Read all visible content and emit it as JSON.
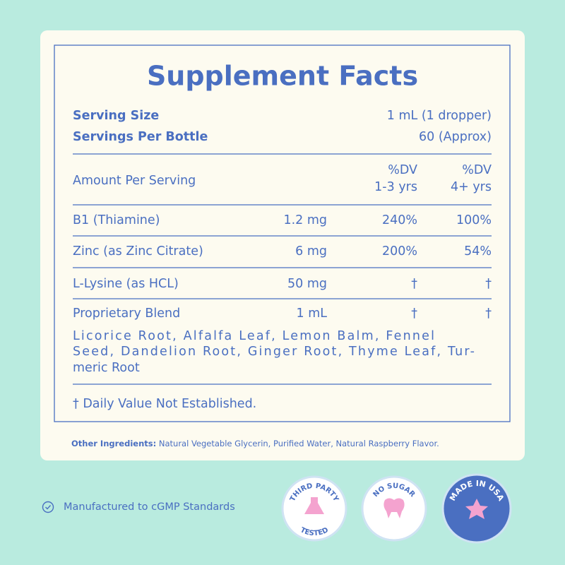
{
  "header": {
    "title": "Supplement Facts"
  },
  "serving": [
    {
      "label": "Serving Size",
      "value": "1 mL (1 dropper)"
    },
    {
      "label": "Servings Per Bottle",
      "value": "60 (Approx)"
    }
  ],
  "table": {
    "header": {
      "label": "Amount Per Serving",
      "dv1": [
        "%DV",
        "1-3 yrs"
      ],
      "dv2": [
        "%DV",
        "4+ yrs"
      ]
    },
    "rows": [
      [
        "B1 (Thiamine)",
        "1.2 mg",
        "240%",
        "100%"
      ],
      [
        "Zinc (as Zinc Citrate)",
        "6 mg",
        "200%",
        "54%"
      ],
      [
        "L-Lysine (as HCL)",
        "50 mg",
        "†",
        "†"
      ],
      [
        "Proprietary Blend",
        "1 mL",
        "†",
        "†"
      ]
    ],
    "blend": [
      "Licorice Root, Alfalfa Leaf, Lemon Balm, Fennel",
      "Seed, Dandelion Root, Ginger Root, Thyme Leaf, Tur-",
      "meric Root"
    ]
  },
  "footnote": "† Daily Value Not Established.",
  "other_ingredients": {
    "label": "Other Ingredients:",
    "text": "Natural Vegetable Glycerin, Purified Water, Natural Raspberry Flavor."
  },
  "footer": {
    "certification": "Manufactured to cGMP Standards",
    "badges": [
      {
        "top": "THIRD PARTY",
        "bottom": "TESTED"
      },
      {
        "top": "NO SUGAR"
      },
      {
        "top": "MADE IN USA"
      }
    ]
  }
}
